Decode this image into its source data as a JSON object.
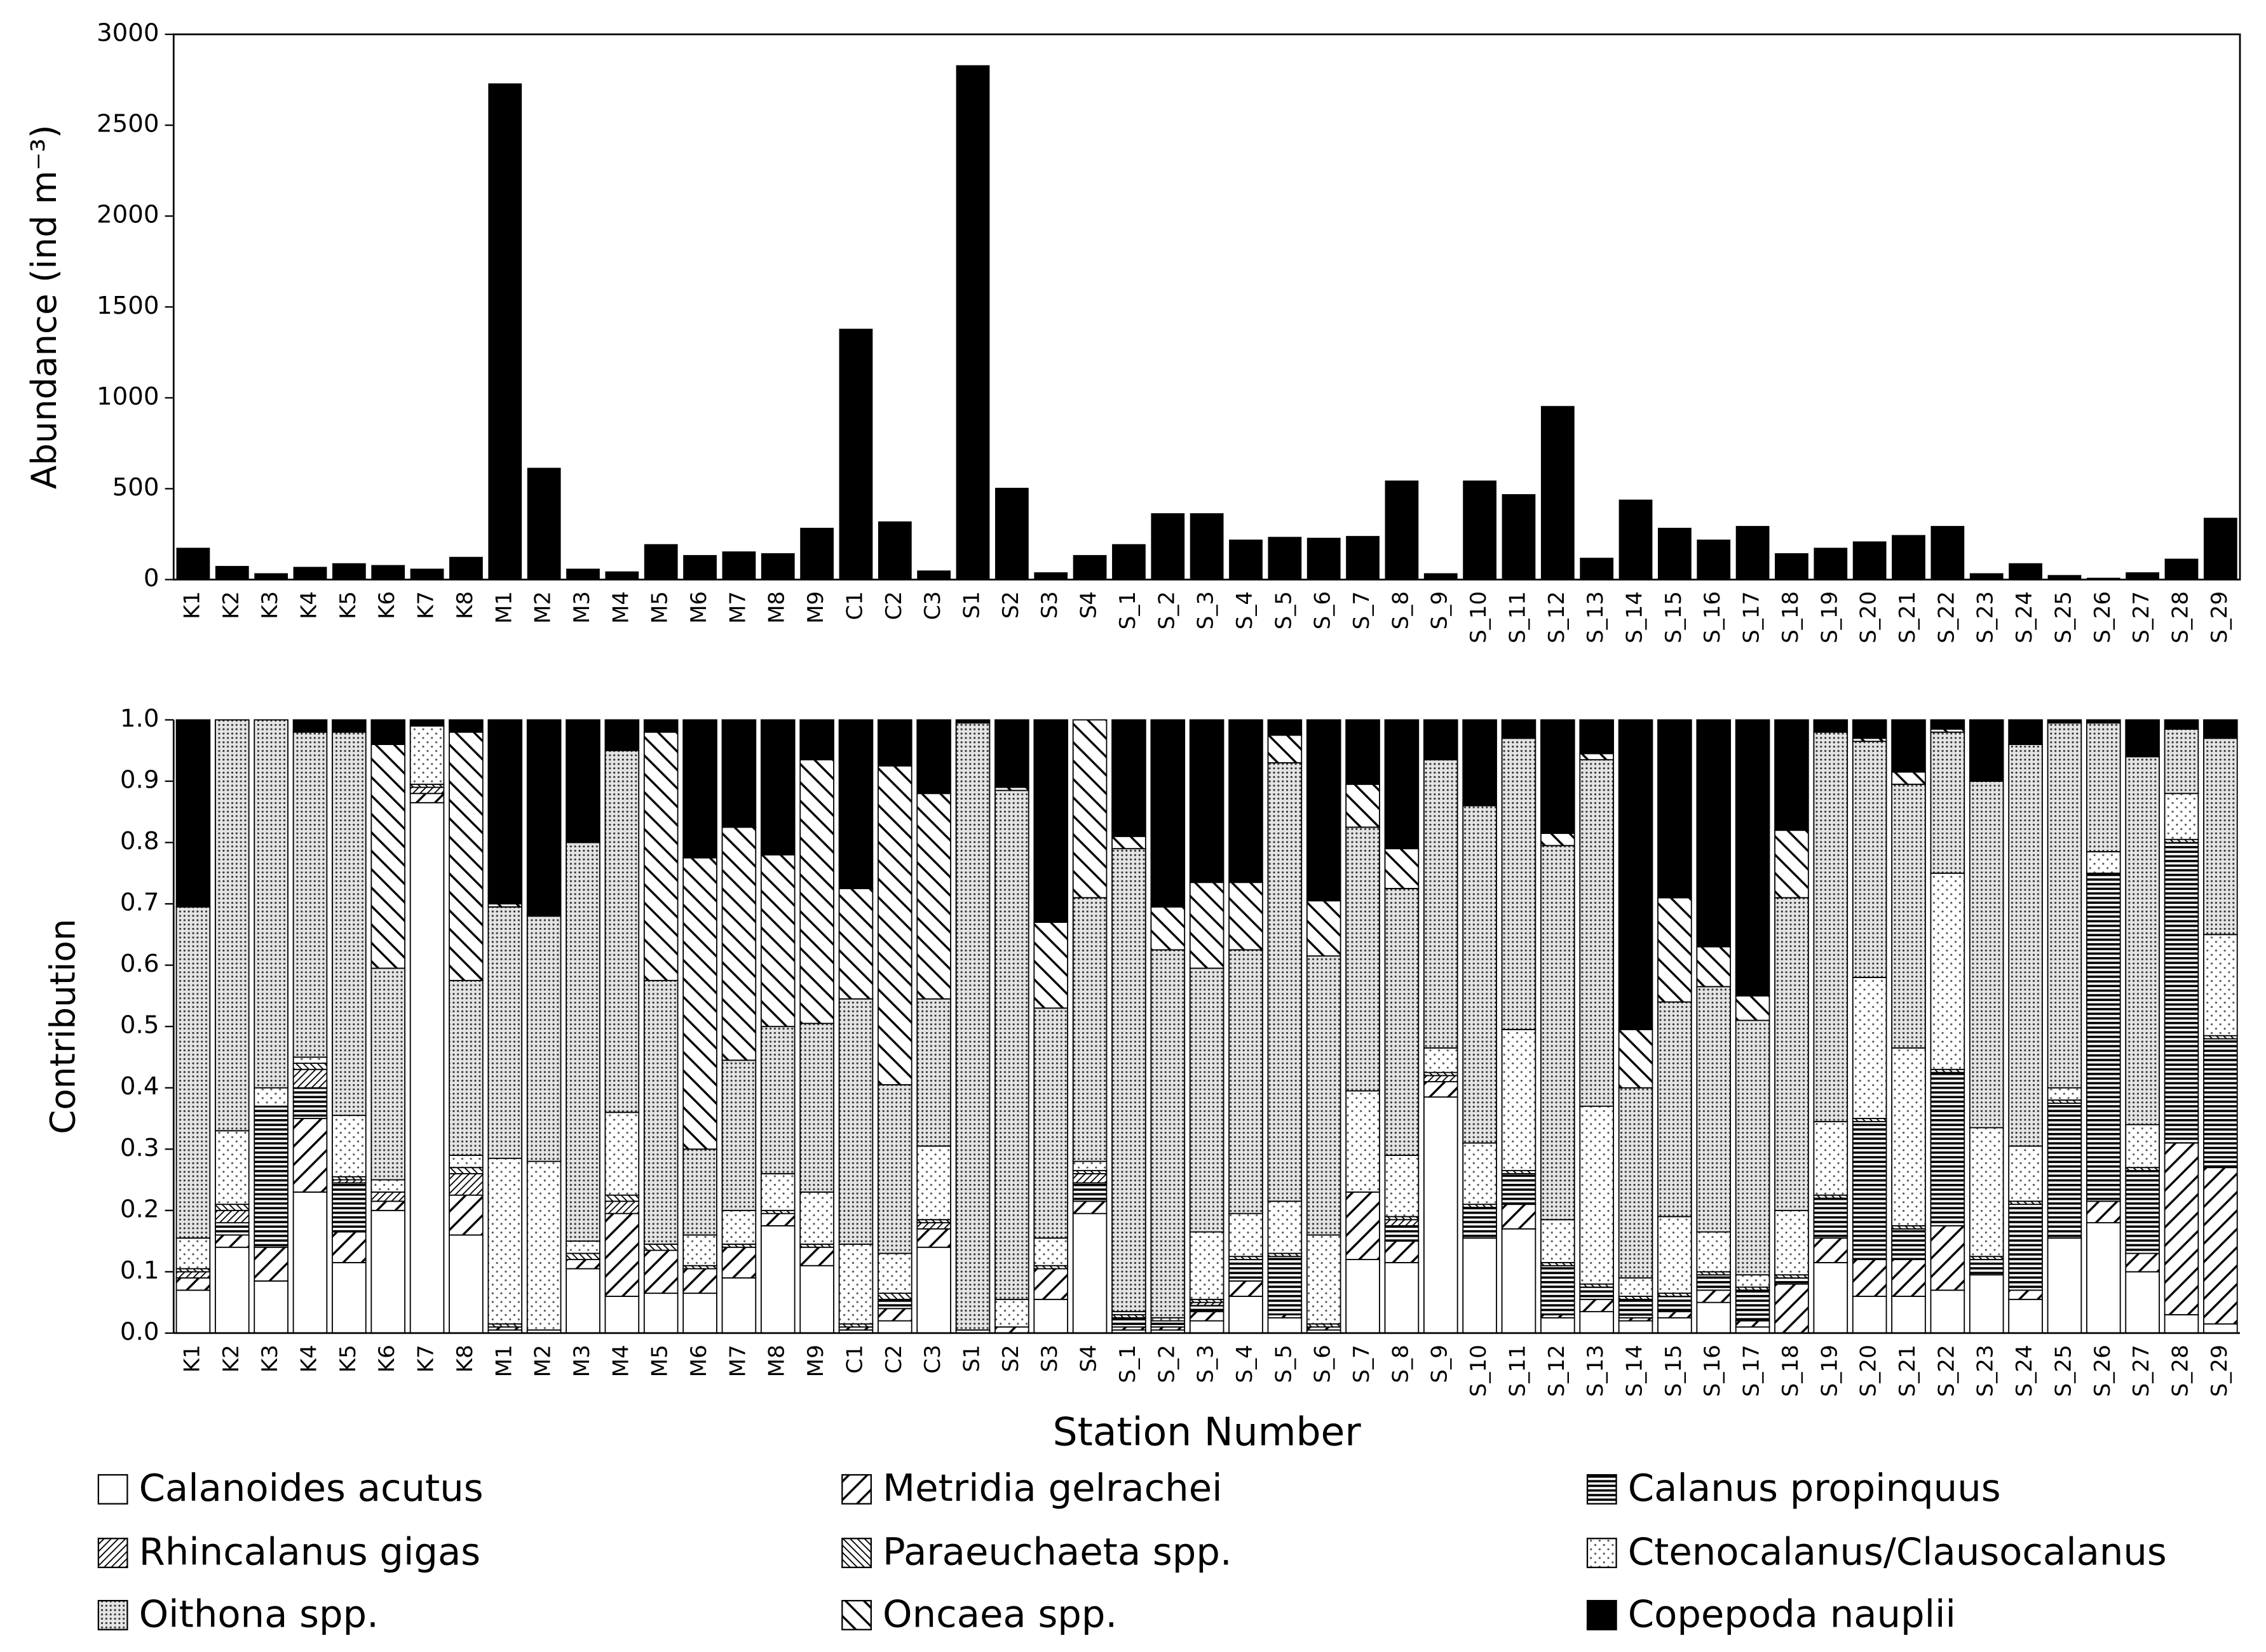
{
  "chart_data": [
    {
      "type": "bar",
      "ylabel": "Abundance (ind m⁻³)",
      "color": "#000000",
      "categories": [
        "K1",
        "K2",
        "K3",
        "K4",
        "K5",
        "K6",
        "K7",
        "K8",
        "M1",
        "M2",
        "M3",
        "M4",
        "M5",
        "M6",
        "M7",
        "M8",
        "M9",
        "C1",
        "C2",
        "C3",
        "S1",
        "S2",
        "S3",
        "S4",
        "S_1",
        "S_2",
        "S_3",
        "S_4",
        "S_5",
        "S_6",
        "S_7",
        "S_8",
        "S_9",
        "S_10",
        "S_11",
        "S_12",
        "S_13",
        "S_14",
        "S_15",
        "S_16",
        "S_17",
        "S_18",
        "S_19",
        "S_20",
        "S_21",
        "S_22",
        "S_23",
        "S_24",
        "S_25",
        "S_26",
        "S_27",
        "S_28",
        "S_29"
      ],
      "values": [
        175,
        75,
        35,
        70,
        90,
        80,
        60,
        125,
        2730,
        615,
        60,
        45,
        195,
        135,
        155,
        145,
        285,
        1380,
        320,
        50,
        2830,
        505,
        40,
        135,
        195,
        365,
        365,
        220,
        235,
        230,
        240,
        545,
        35,
        545,
        470,
        955,
        120,
        440,
        285,
        220,
        295,
        145,
        175,
        210,
        245,
        295,
        35,
        90,
        25,
        10,
        40,
        115,
        340
      ],
      "ylim": [
        0,
        3000
      ],
      "yticks": [
        0,
        500,
        1000,
        1500,
        2000,
        2500,
        3000
      ]
    },
    {
      "type": "stacked_bar",
      "ylabel": "Contribution",
      "xlabel": "Station Number",
      "categories": [
        "K1",
        "K2",
        "K3",
        "K4",
        "K5",
        "K6",
        "K7",
        "K8",
        "M1",
        "M2",
        "M3",
        "M4",
        "M5",
        "M6",
        "M7",
        "M8",
        "M9",
        "C1",
        "C2",
        "C3",
        "S1",
        "S2",
        "S3",
        "S4",
        "S_1",
        "S_2",
        "S_3",
        "S_4",
        "S_5",
        "S_6",
        "S_7",
        "S_8",
        "S_9",
        "S_10",
        "S_11",
        "S_12",
        "S_13",
        "S_14",
        "S_15",
        "S_16",
        "S_17",
        "S_18",
        "S_19",
        "S_20",
        "S_21",
        "S_22",
        "S_23",
        "S_24",
        "S_25",
        "S_26",
        "S_27",
        "S_28",
        "S_29"
      ],
      "ylim": [
        0,
        1
      ],
      "yticks": [
        {
          "value": 0,
          "label": "0.0"
        },
        {
          "value": 0.1,
          "label": "0.1"
        },
        {
          "value": 0.2,
          "label": "0.2"
        },
        {
          "value": 0.3,
          "label": "0.3"
        },
        {
          "value": 0.4,
          "label": "0.4"
        },
        {
          "value": 0.5,
          "label": "0.5"
        },
        {
          "value": 0.6,
          "label": "0.6"
        },
        {
          "value": 0.7,
          "label": "0.7"
        },
        {
          "value": 0.8,
          "label": "0.8"
        },
        {
          "value": 0.9,
          "label": "0.9"
        },
        {
          "value": 1,
          "label": "1.0"
        }
      ],
      "series": [
        {
          "name": "Calanoides acutus",
          "pattern": "white",
          "values": [
            0.07,
            0.14,
            0.085,
            0.23,
            0.115,
            0.2,
            0.865,
            0.16,
            0.005,
            0.005,
            0.105,
            0.06,
            0.065,
            0.065,
            0.09,
            0.175,
            0.11,
            0.005,
            0.02,
            0.14,
            0.005,
            0,
            0.055,
            0.195,
            0.005,
            0.005,
            0.02,
            0.06,
            0.025,
            0.005,
            0.12,
            0.115,
            0.385,
            0.155,
            0.17,
            0.025,
            0.035,
            0.02,
            0.025,
            0.05,
            0.01,
            0,
            0.115,
            0.06,
            0.06,
            0.07,
            0.095,
            0.055,
            0.155,
            0.18,
            0.1,
            0.03,
            0.015
          ]
        },
        {
          "name": "Metridia gelrachei",
          "pattern": "diag",
          "values": [
            0.02,
            0.02,
            0.055,
            0.12,
            0.05,
            0.015,
            0.015,
            0.065,
            0.005,
            0,
            0.015,
            0.135,
            0.07,
            0.04,
            0.05,
            0.02,
            0.03,
            0.005,
            0.02,
            0.03,
            0,
            0.01,
            0.05,
            0.02,
            0.005,
            0.005,
            0.015,
            0.025,
            0.005,
            0.005,
            0.11,
            0.035,
            0.025,
            0,
            0.04,
            0.005,
            0.02,
            0.005,
            0.01,
            0.02,
            0.01,
            0.08,
            0.04,
            0.06,
            0.06,
            0.105,
            0,
            0.015,
            0,
            0.035,
            0.03,
            0.28,
            0.255
          ]
        },
        {
          "name": "Calanus propinquus",
          "pattern": "horiz",
          "values": [
            0,
            0.02,
            0.23,
            0.05,
            0.08,
            0,
            0,
            0,
            0,
            0,
            0,
            0,
            0,
            0,
            0,
            0,
            0,
            0,
            0.015,
            0,
            0,
            0,
            0,
            0.03,
            0.015,
            0.01,
            0.01,
            0.035,
            0.095,
            0,
            0,
            0.025,
            0,
            0.05,
            0.05,
            0.08,
            0.02,
            0.03,
            0.025,
            0.025,
            0.05,
            0.01,
            0.065,
            0.225,
            0.05,
            0.25,
            0.025,
            0.14,
            0.22,
            0.535,
            0.135,
            0.49,
            0.21
          ]
        },
        {
          "name": "Rhincalanus gigas",
          "pattern": "diagdense",
          "values": [
            0.01,
            0.02,
            0,
            0.03,
            0.005,
            0.015,
            0.01,
            0.035,
            0,
            0,
            0,
            0.02,
            0,
            0,
            0,
            0,
            0,
            0,
            0,
            0.01,
            0,
            0,
            0,
            0.015,
            0,
            0,
            0.005,
            0,
            0,
            0,
            0,
            0.01,
            0.01,
            0,
            0,
            0,
            0,
            0,
            0,
            0,
            0,
            0,
            0,
            0,
            0,
            0,
            0,
            0,
            0,
            0,
            0,
            0,
            0
          ]
        },
        {
          "name": "Paraeuchaeta spp.",
          "pattern": "backdense",
          "values": [
            0.005,
            0.01,
            0,
            0.01,
            0.005,
            0,
            0.005,
            0.01,
            0.005,
            0,
            0.01,
            0.01,
            0.01,
            0.005,
            0.005,
            0.005,
            0.005,
            0.005,
            0.01,
            0.005,
            0,
            0,
            0.005,
            0.005,
            0.005,
            0,
            0.005,
            0.005,
            0.005,
            0.005,
            0,
            0.005,
            0.005,
            0.005,
            0.005,
            0.005,
            0.005,
            0.005,
            0.005,
            0.005,
            0.005,
            0.005,
            0.005,
            0.005,
            0.005,
            0.005,
            0.005,
            0.005,
            0.005,
            0,
            0.005,
            0.005,
            0.005
          ]
        },
        {
          "name": "Ctenocalanus/Clausocalanus",
          "pattern": "sparsedots",
          "values": [
            0.05,
            0.12,
            0.03,
            0.01,
            0.1,
            0.02,
            0.095,
            0.02,
            0.27,
            0.275,
            0.02,
            0.135,
            0,
            0.05,
            0.055,
            0.06,
            0.085,
            0.13,
            0.065,
            0.12,
            0,
            0.045,
            0.045,
            0.015,
            0.005,
            0.005,
            0.11,
            0.07,
            0.085,
            0.145,
            0.165,
            0.1,
            0.04,
            0.1,
            0.23,
            0.07,
            0.29,
            0.03,
            0.125,
            0.065,
            0.02,
            0.105,
            0.12,
            0.23,
            0.29,
            0.32,
            0.21,
            0.09,
            0.02,
            0.035,
            0.07,
            0.075,
            0.165
          ]
        },
        {
          "name": "Oithona spp.",
          "pattern": "densedots",
          "values": [
            0.54,
            0.67,
            0.6,
            0.53,
            0.625,
            0.345,
            0,
            0.285,
            0.41,
            0.4,
            0.65,
            0.59,
            0.43,
            0.14,
            0.245,
            0.24,
            0.275,
            0.4,
            0.275,
            0.24,
            0.99,
            0.83,
            0.375,
            0.43,
            0.755,
            0.6,
            0.43,
            0.43,
            0.715,
            0.455,
            0.43,
            0.435,
            0.47,
            0.55,
            0.475,
            0.61,
            0.565,
            0.31,
            0.35,
            0.4,
            0.415,
            0.51,
            0.635,
            0.385,
            0.43,
            0.23,
            0.565,
            0.655,
            0.595,
            0.21,
            0.6,
            0.105,
            0.32
          ]
        },
        {
          "name": "Oncaea spp.",
          "pattern": "back",
          "values": [
            0,
            0,
            0,
            0,
            0,
            0.365,
            0,
            0.405,
            0.005,
            0,
            0,
            0,
            0.405,
            0.475,
            0.38,
            0.28,
            0.43,
            0.18,
            0.52,
            0.335,
            0,
            0.005,
            0.14,
            0.29,
            0.02,
            0.07,
            0.14,
            0.11,
            0.045,
            0.09,
            0.07,
            0.065,
            0,
            0,
            0,
            0.02,
            0.01,
            0.095,
            0.17,
            0.065,
            0.04,
            0.11,
            0,
            0.005,
            0.02,
            0.005,
            0,
            0,
            0,
            0,
            0,
            0,
            0
          ]
        },
        {
          "name": "Copepoda nauplii",
          "pattern": "black",
          "values": [
            0.305,
            0,
            0,
            0.02,
            0.02,
            0.04,
            0.01,
            0.02,
            0.3,
            0.32,
            0.2,
            0.05,
            0.02,
            0.225,
            0.175,
            0.22,
            0.065,
            0.275,
            0.075,
            0.12,
            0.005,
            0.11,
            0.33,
            0,
            0.19,
            0.305,
            0.265,
            0.265,
            0.025,
            0.295,
            0.105,
            0.21,
            0.065,
            0.14,
            0.03,
            0.185,
            0.055,
            0.505,
            0.29,
            0.37,
            0.45,
            0.18,
            0.02,
            0.03,
            0.085,
            0.015,
            0.1,
            0.04,
            0.005,
            0.005,
            0.06,
            0.015,
            0.03
          ]
        }
      ]
    }
  ]
}
